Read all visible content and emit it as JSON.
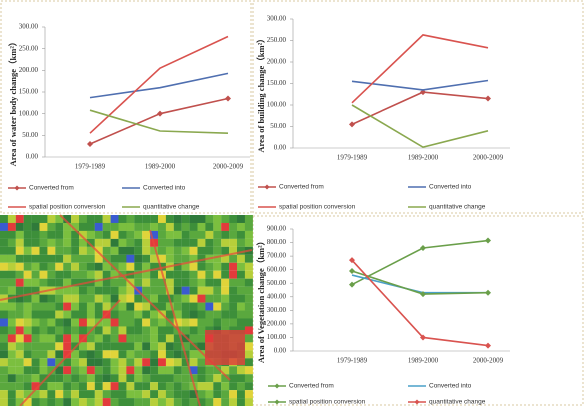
{
  "chart_data": [
    {
      "type": "line",
      "y_label": "Area of water body change（km²）",
      "categories": [
        "1979-1989",
        "1989-2000",
        "2000-2009"
      ],
      "ylim": [
        0,
        300
      ],
      "yticks": [
        {
          "value": 0,
          "label": "0.00"
        },
        {
          "value": 50,
          "label": "50.00"
        },
        {
          "value": 100,
          "label": "100.00"
        },
        {
          "value": 150,
          "label": "150.00"
        },
        {
          "value": 200,
          "label": "200.00"
        },
        {
          "value": 250,
          "label": "250.00"
        },
        {
          "value": 300,
          "label": "300.00"
        }
      ],
      "series": [
        {
          "name": "Converted from",
          "color": "#c0504d",
          "marker": true,
          "values": [
            30,
            100,
            135
          ]
        },
        {
          "name": "Converted into",
          "color": "#4f6fb0",
          "marker": false,
          "values": [
            137,
            160,
            193
          ]
        },
        {
          "name": "spatial position conversion",
          "color": "#d9534f",
          "marker": false,
          "values": [
            55,
            205,
            278
          ]
        },
        {
          "name": "quantitative change",
          "color": "#8aa84f",
          "marker": false,
          "values": [
            108,
            60,
            55
          ]
        }
      ]
    },
    {
      "type": "line",
      "y_label": "Area of building change（km²）",
      "categories": [
        "1979-1989",
        "1989-2000",
        "2000-2009"
      ],
      "ylim": [
        0,
        300
      ],
      "yticks": [
        {
          "value": 0,
          "label": "0.00"
        },
        {
          "value": 50,
          "label": "50.00"
        },
        {
          "value": 100,
          "label": "100.00"
        },
        {
          "value": 150,
          "label": "150.00"
        },
        {
          "value": 200,
          "label": "200.00"
        },
        {
          "value": 250,
          "label": "250.00"
        },
        {
          "value": 300,
          "label": "300.00"
        }
      ],
      "series": [
        {
          "name": "Converted from",
          "color": "#c0504d",
          "marker": true,
          "values": [
            55,
            130,
            115
          ]
        },
        {
          "name": "Converted into",
          "color": "#4f6fb0",
          "marker": false,
          "values": [
            155,
            135,
            157
          ]
        },
        {
          "name": "spatial position conversion",
          "color": "#d9534f",
          "marker": false,
          "values": [
            105,
            263,
            233
          ]
        },
        {
          "name": "quantitative change",
          "color": "#8aa84f",
          "marker": false,
          "values": [
            100,
            2,
            40
          ]
        }
      ]
    },
    {
      "type": "line",
      "y_label": "Area of Vegetation change（km²）",
      "categories": [
        "1979-1989",
        "1989-2000",
        "2000-2009"
      ],
      "ylim": [
        0,
        900
      ],
      "yticks": [
        {
          "value": 0,
          "label": "0.00"
        },
        {
          "value": 100,
          "label": "100.00"
        },
        {
          "value": 200,
          "label": "200.00"
        },
        {
          "value": 300,
          "label": "300.00"
        },
        {
          "value": 400,
          "label": "400.00"
        },
        {
          "value": 500,
          "label": "500.00"
        },
        {
          "value": 600,
          "label": "600.00"
        },
        {
          "value": 700,
          "label": "700.00"
        },
        {
          "value": 800,
          "label": "800.00"
        },
        {
          "value": 900,
          "label": "900.00"
        }
      ],
      "series": [
        {
          "name": "Converted from",
          "color": "#6a9f4a",
          "marker": true,
          "values": [
            490,
            760,
            815
          ]
        },
        {
          "name": "Converted into",
          "color": "#4aa0c8",
          "marker": false,
          "values": [
            560,
            430,
            430
          ]
        },
        {
          "name": "spatial position conversion",
          "color": "#6a9f4a",
          "marker": true,
          "values": [
            590,
            420,
            430
          ]
        },
        {
          "name": "quantitative change",
          "color": "#d9534f",
          "marker": true,
          "values": [
            670,
            100,
            40
          ]
        }
      ]
    }
  ]
}
